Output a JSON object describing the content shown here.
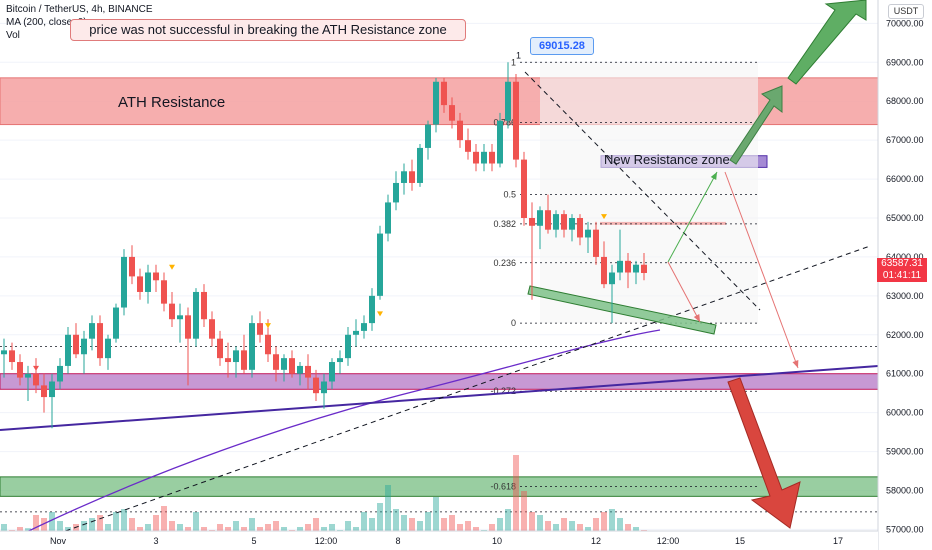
{
  "header": {
    "symbol_line": "Bitcoin / TetherUS, 4h, BINANCE",
    "ma_line": "MA (200, close, 0)",
    "vol_line": "Vol"
  },
  "callout_text": "price was not successful in breaking the ATH Resistance zone",
  "ath_label": "ATH Resistance",
  "new_resistance_label": "New Resistance zone",
  "high_tag": "69015.28",
  "high_marker": "1",
  "currency": "USDT",
  "last_price": "63587.31",
  "countdown": "01:41:11",
  "colors": {
    "up": "#26a69a",
    "down": "#ef5350",
    "ma": "#6a2bc9",
    "resistance_zone": "#f4a0a0",
    "support_green": "#7fc28a",
    "purple_zone": "#b97fc9"
  },
  "chart_data": {
    "type": "candlestick",
    "title": "Bitcoin / TetherUS, 4h, BINANCE",
    "y_ticks": [
      "70000.00",
      "69000.00",
      "68000.00",
      "67000.00",
      "66000.00",
      "65000.00",
      "64000.00",
      "63000.00",
      "62000.00",
      "61000.00",
      "60000.00",
      "59000.00",
      "58000.00",
      "57000.00"
    ],
    "x_ticks": [
      "Nov",
      "3",
      "5",
      "12:00",
      "8",
      "10",
      "12",
      "12:00",
      "15",
      "17"
    ],
    "ylim": [
      56600,
      70600
    ],
    "fib_levels": [
      {
        "label": "1",
        "price": 69000
      },
      {
        "label": "0.786",
        "price": 67450
      },
      {
        "label": "0.5",
        "price": 65600
      },
      {
        "label": "0.382",
        "price": 64850
      },
      {
        "label": "0.236",
        "price": 63850
      },
      {
        "label": "0",
        "price": 62300
      },
      {
        "label": "-0.272",
        "price": 60550
      },
      {
        "label": "-0.618",
        "price": 58100
      }
    ],
    "ath_zone": [
      67400,
      68600
    ],
    "new_resistance_zone": [
      66300,
      66600
    ],
    "purple_support_zone": [
      60600,
      61000
    ],
    "green_support_zone": [
      57850,
      58350
    ],
    "candles": [
      [
        61500,
        61900,
        60900,
        61600
      ],
      [
        61600,
        61800,
        61100,
        61300
      ],
      [
        61300,
        61500,
        60700,
        60900
      ],
      [
        60900,
        61200,
        60300,
        61000
      ],
      [
        61000,
        61400,
        60500,
        60700
      ],
      [
        60700,
        61000,
        60000,
        60400
      ],
      [
        60400,
        61000,
        59600,
        60800
      ],
      [
        60800,
        61400,
        60600,
        61200
      ],
      [
        61200,
        62200,
        61000,
        62000
      ],
      [
        62000,
        62300,
        61400,
        61500
      ],
      [
        61500,
        62100,
        61000,
        61900
      ],
      [
        61900,
        62500,
        61600,
        62300
      ],
      [
        62300,
        62500,
        61200,
        61400
      ],
      [
        61400,
        62000,
        61100,
        61900
      ],
      [
        61900,
        62800,
        61800,
        62700
      ],
      [
        62700,
        64200,
        62500,
        64000
      ],
      [
        64000,
        64300,
        63300,
        63500
      ],
      [
        63500,
        63700,
        62900,
        63100
      ],
      [
        63100,
        63800,
        62800,
        63600
      ],
      [
        63600,
        63800,
        63100,
        63400
      ],
      [
        63400,
        63600,
        62600,
        62800
      ],
      [
        62800,
        63100,
        62200,
        62400
      ],
      [
        62400,
        62800,
        61800,
        62500
      ],
      [
        62500,
        62700,
        60700,
        61900
      ],
      [
        61900,
        63200,
        61700,
        63100
      ],
      [
        63100,
        63300,
        62200,
        62400
      ],
      [
        62400,
        62600,
        61700,
        61900
      ],
      [
        61900,
        62100,
        61200,
        61400
      ],
      [
        61400,
        61800,
        60900,
        61300
      ],
      [
        61300,
        61700,
        60900,
        61600
      ],
      [
        61600,
        62000,
        61000,
        61100
      ],
      [
        61100,
        62500,
        60900,
        62300
      ],
      [
        62300,
        62600,
        61800,
        62000
      ],
      [
        62000,
        62400,
        61300,
        61500
      ],
      [
        61500,
        61700,
        60800,
        61100
      ],
      [
        61100,
        61500,
        60800,
        61400
      ],
      [
        61400,
        61600,
        60900,
        61000
      ],
      [
        61000,
        61300,
        60700,
        61200
      ],
      [
        61200,
        61500,
        60600,
        60900
      ],
      [
        60900,
        61100,
        60300,
        60500
      ],
      [
        60500,
        61000,
        60100,
        60800
      ],
      [
        60800,
        61400,
        60600,
        61300
      ],
      [
        61300,
        61600,
        61000,
        61400
      ],
      [
        61400,
        62200,
        61200,
        62000
      ],
      [
        62000,
        62400,
        61700,
        62100
      ],
      [
        62100,
        62500,
        61900,
        62300
      ],
      [
        62300,
        63200,
        62100,
        63000
      ],
      [
        63000,
        64800,
        62900,
        64600
      ],
      [
        64600,
        65600,
        64400,
        65400
      ],
      [
        65400,
        66200,
        65200,
        65900
      ],
      [
        65900,
        66400,
        65600,
        66200
      ],
      [
        66200,
        66500,
        65700,
        65900
      ],
      [
        65900,
        66900,
        65800,
        66800
      ],
      [
        66800,
        67500,
        66500,
        67400
      ],
      [
        67400,
        68600,
        67200,
        68500
      ],
      [
        68500,
        68600,
        67700,
        67900
      ],
      [
        67900,
        68100,
        67300,
        67500
      ],
      [
        67500,
        67700,
        66800,
        67000
      ],
      [
        67000,
        67300,
        66500,
        66700
      ],
      [
        66700,
        66900,
        66200,
        66400
      ],
      [
        66400,
        66900,
        66200,
        66700
      ],
      [
        66700,
        66900,
        66200,
        66400
      ],
      [
        66400,
        67700,
        66300,
        67500
      ],
      [
        67500,
        69000,
        67300,
        68500
      ],
      [
        68500,
        68700,
        66300,
        66500
      ],
      [
        66500,
        66700,
        64800,
        65000
      ],
      [
        65000,
        65400,
        62900,
        64800
      ],
      [
        64800,
        65300,
        64200,
        65200
      ],
      [
        65200,
        65600,
        64600,
        64700
      ],
      [
        64700,
        65200,
        64500,
        65100
      ],
      [
        65100,
        65200,
        64500,
        64700
      ],
      [
        64700,
        65100,
        64400,
        65000
      ],
      [
        65000,
        65100,
        64300,
        64500
      ],
      [
        64500,
        64900,
        64100,
        64700
      ],
      [
        64700,
        64900,
        63800,
        64000
      ],
      [
        64000,
        64400,
        63200,
        63300
      ],
      [
        63300,
        63800,
        62300,
        63600
      ],
      [
        63600,
        64700,
        63400,
        63900
      ],
      [
        63900,
        64100,
        63200,
        63600
      ],
      [
        63600,
        63900,
        63300,
        63800
      ],
      [
        63800,
        64100,
        63400,
        63587.31
      ]
    ],
    "volume_relative": [
      0.35,
      0.25,
      0.3,
      0.28,
      0.5,
      0.45,
      0.55,
      0.4,
      0.3,
      0.35,
      0.4,
      0.45,
      0.5,
      0.35,
      0.55,
      0.6,
      0.45,
      0.3,
      0.35,
      0.5,
      0.65,
      0.4,
      0.35,
      0.3,
      0.55,
      0.3,
      0.25,
      0.35,
      0.3,
      0.4,
      0.3,
      0.45,
      0.3,
      0.35,
      0.4,
      0.3,
      0.25,
      0.3,
      0.35,
      0.45,
      0.3,
      0.35,
      0.25,
      0.4,
      0.3,
      0.55,
      0.45,
      0.7,
      1.0,
      0.6,
      0.5,
      0.45,
      0.4,
      0.55,
      0.8,
      0.45,
      0.5,
      0.35,
      0.4,
      0.3,
      0.25,
      0.35,
      0.45,
      0.6,
      1.5,
      0.9,
      0.55,
      0.5,
      0.4,
      0.35,
      0.45,
      0.4,
      0.35,
      0.3,
      0.45,
      0.55,
      0.6,
      0.45,
      0.35,
      0.3,
      0.25
    ]
  }
}
